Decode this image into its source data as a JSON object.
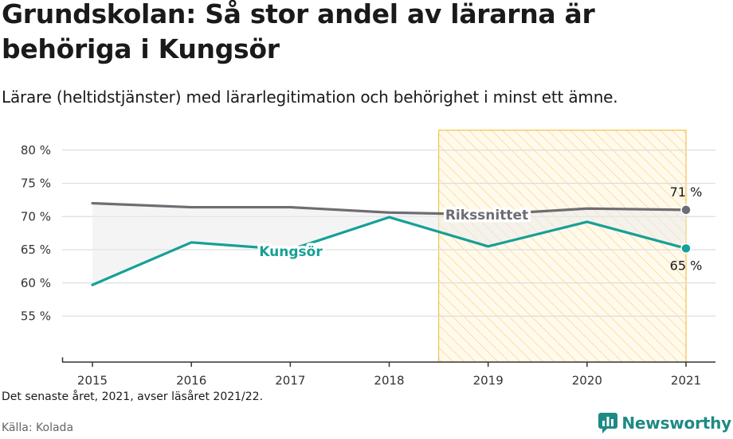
{
  "title": "Grundskolan: Så stor andel av lärarna är behöriga i Kungsör",
  "subtitle": "Lärare (heltidstjänster) med lärarlegitimation och behörighet i minst ett ämne.",
  "footnote": "Det senaste året, 2021, avser läsåret 2021/22.",
  "source": "Källa: Kolada",
  "brand": {
    "name": "Newsworthy",
    "icon": "newsworthy-chart-bubble-icon"
  },
  "colors": {
    "kungsor": "#16a096",
    "riket": "#6e6d73",
    "highlight": "#f2c14e",
    "grid": "#dddddd"
  },
  "chart_data": {
    "type": "line",
    "x": [
      "2015",
      "2016",
      "2017",
      "2018",
      "2019",
      "2020",
      "2021"
    ],
    "y_ticks": [
      "55 %",
      "60 %",
      "65 %",
      "70 %",
      "75 %",
      "80 %"
    ],
    "ylim": [
      50,
      83
    ],
    "grid": true,
    "highlight": {
      "from": "2019",
      "to": "2021"
    },
    "series": [
      {
        "name": "Rikssnittet",
        "color": "#6e6d73",
        "values": [
          72.0,
          71.4,
          71.4,
          70.6,
          70.3,
          71.2,
          71.0
        ],
        "end_label": "71 %"
      },
      {
        "name": "Kungsör",
        "color": "#16a096",
        "values": [
          59.7,
          66.1,
          65.0,
          69.9,
          65.5,
          69.2,
          65.2
        ],
        "end_label": "65 %"
      }
    ]
  }
}
